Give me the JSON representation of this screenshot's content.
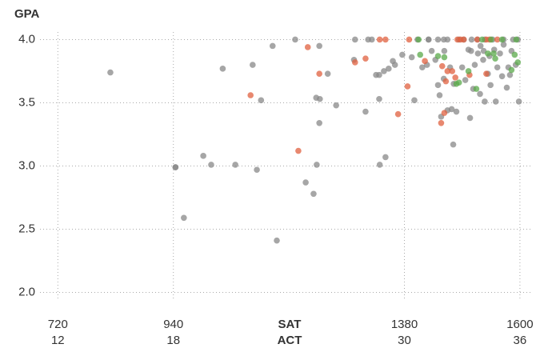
{
  "chart_data": {
    "type": "scatter",
    "y_label": "GPA",
    "x_label": "SAT",
    "x2_label": "ACT",
    "xlim": [
      686,
      1623
    ],
    "ylim": [
      1.94,
      4.06
    ],
    "xticks": [
      720,
      940,
      1380,
      1600
    ],
    "act_ticks": [
      12,
      18,
      30,
      36
    ],
    "yticks": [
      {
        "value": 2,
        "label": "2.0"
      },
      2.5,
      {
        "value": 3,
        "label": "3.0"
      },
      3.5,
      {
        "value": 4,
        "label": "4.0"
      }
    ],
    "grid": true,
    "series": [
      {
        "color": "#888888",
        "x": [
          820,
          944,
          944,
          960,
          997,
          1012,
          1034,
          1058,
          1091,
          1099,
          1107,
          1129,
          1137,
          1172,
          1192,
          1207,
          1212,
          1213,
          1218,
          1219,
          1218,
          1234,
          1250,
          1284,
          1286,
          1306,
          1311,
          1318,
          1326,
          1332,
          1332,
          1333,
          1341,
          1344,
          1350,
          1358,
          1362,
          1376,
          1394,
          1399,
          1405,
          1414,
          1423,
          1426,
          1426,
          1432,
          1439,
          1444,
          1444,
          1447,
          1450,
          1455,
          1456,
          1462,
          1467,
          1470,
          1473,
          1474,
          1479,
          1484,
          1490,
          1493,
          1496,
          1502,
          1505,
          1508,
          1511,
          1514,
          1520,
          1524,
          1530,
          1533,
          1533,
          1539,
          1544,
          1548,
          1551,
          1554,
          1557,
          1562,
          1566,
          1569,
          1575,
          1578,
          1581,
          1584,
          1587,
          1592,
          1596,
          1598,
          1525,
          1531,
          1542,
          1569,
          1507,
          1519,
          1455,
          1462
        ],
        "values": [
          3.74,
          2.99,
          2.99,
          2.59,
          3.08,
          3.01,
          3.77,
          3.01,
          3.8,
          2.97,
          3.52,
          3.95,
          2.41,
          4.0,
          2.87,
          2.78,
          3.54,
          3.01,
          3.34,
          3.53,
          3.95,
          3.73,
          3.48,
          3.84,
          4.0,
          3.43,
          4.0,
          4.0,
          3.72,
          3.72,
          3.53,
          3.01,
          3.75,
          3.07,
          3.77,
          3.83,
          3.8,
          3.88,
          3.86,
          3.52,
          4.0,
          3.78,
          3.8,
          4.0,
          4.0,
          3.91,
          3.84,
          4.0,
          3.64,
          3.56,
          3.39,
          3.69,
          3.91,
          3.44,
          3.78,
          3.45,
          3.17,
          3.65,
          3.43,
          4.0,
          3.78,
          4.0,
          3.68,
          3.92,
          3.38,
          4.0,
          3.61,
          3.8,
          3.89,
          3.57,
          3.84,
          4.0,
          3.51,
          3.73,
          3.64,
          4.0,
          3.92,
          3.51,
          3.78,
          3.89,
          3.71,
          3.96,
          3.62,
          3.78,
          3.72,
          3.91,
          4.0,
          3.8,
          4.0,
          3.51,
          3.95,
          3.91,
          3.87,
          4.0,
          3.91,
          4.0,
          4.0,
          4.0
        ]
      },
      {
        "color": "#e0603f",
        "x": [
          1087,
          1178,
          1196,
          1218,
          1286,
          1306,
          1333,
          1344,
          1368,
          1386,
          1389,
          1419,
          1450,
          1452,
          1456,
          1459,
          1462,
          1471,
          1477,
          1481,
          1487,
          1493,
          1504,
          1519,
          1536,
          1542,
          1557,
          1536
        ],
        "values": [
          3.56,
          3.12,
          3.94,
          3.73,
          3.82,
          3.85,
          4.0,
          4.0,
          3.41,
          3.63,
          4.0,
          3.83,
          3.34,
          3.79,
          3.42,
          3.67,
          3.75,
          3.75,
          3.7,
          4.0,
          4.0,
          4.0,
          3.72,
          4.0,
          3.73,
          4.0,
          4.0,
          4.0
        ]
      },
      {
        "color": "#5aaa4a",
        "x": [
          1407,
          1410,
          1444,
          1456,
          1479,
          1484,
          1502,
          1517,
          1528,
          1539,
          1545,
          1550,
          1553,
          1566,
          1584,
          1590,
          1596,
          1593
        ],
        "values": [
          4.0,
          3.88,
          3.87,
          3.86,
          3.65,
          3.66,
          3.75,
          3.61,
          4.0,
          3.89,
          4.0,
          3.89,
          3.85,
          4.0,
          3.76,
          3.88,
          3.82,
          4.0
        ]
      }
    ]
  }
}
